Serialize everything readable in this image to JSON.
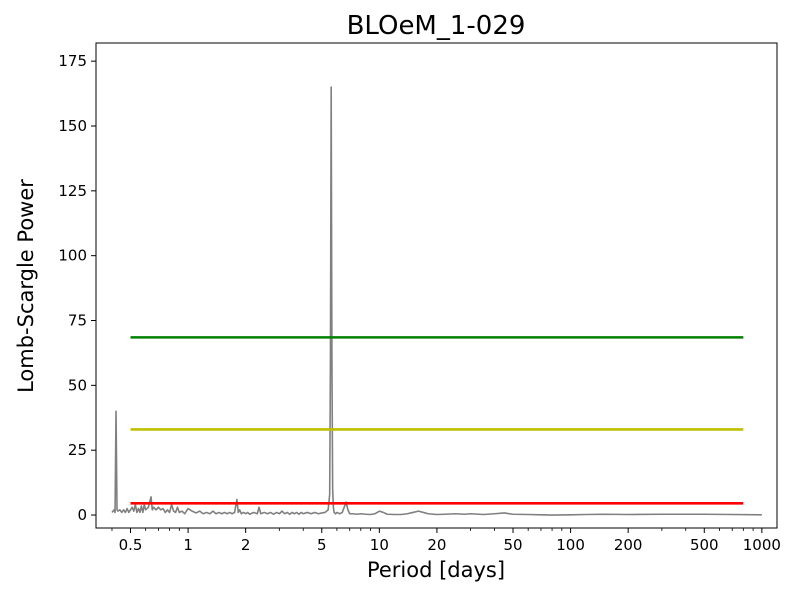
{
  "chart_data": {
    "type": "line",
    "title": "BLOeM_1-029",
    "xlabel": "Period [days]",
    "ylabel": "Lomb-Scargle Power",
    "xscale": "log",
    "xlim": [
      0.33,
      1200
    ],
    "ylim": [
      -5,
      182
    ],
    "grid": false,
    "legend": "none",
    "xticks": [
      {
        "value": 0.5,
        "label": "0.5"
      },
      {
        "value": 1,
        "label": "1"
      },
      {
        "value": 2,
        "label": "2"
      },
      {
        "value": 5,
        "label": "5"
      },
      {
        "value": 10,
        "label": "10"
      },
      {
        "value": 20,
        "label": "20"
      },
      {
        "value": 50,
        "label": "50"
      },
      {
        "value": 100,
        "label": "100"
      },
      {
        "value": 200,
        "label": "200"
      },
      {
        "value": 500,
        "label": "500"
      },
      {
        "value": 1000,
        "label": "1000"
      }
    ],
    "yticks": [
      {
        "value": 0,
        "label": "0"
      },
      {
        "value": 25,
        "label": "25"
      },
      {
        "value": 50,
        "label": "50"
      },
      {
        "value": 75,
        "label": "75"
      },
      {
        "value": 100,
        "label": "100"
      },
      {
        "value": 125,
        "label": "125"
      },
      {
        "value": 150,
        "label": "150"
      },
      {
        "value": 175,
        "label": "175"
      }
    ],
    "series": [
      {
        "color": "#808080",
        "x": [
          0.4,
          0.41,
          0.415,
          0.42,
          0.425,
          0.43,
          0.44,
          0.45,
          0.46,
          0.47,
          0.48,
          0.49,
          0.5,
          0.51,
          0.52,
          0.53,
          0.54,
          0.55,
          0.56,
          0.57,
          0.58,
          0.59,
          0.6,
          0.62,
          0.64,
          0.65,
          0.66,
          0.68,
          0.7,
          0.72,
          0.74,
          0.76,
          0.78,
          0.8,
          0.82,
          0.84,
          0.86,
          0.88,
          0.9,
          0.93,
          0.96,
          1.0,
          1.05,
          1.1,
          1.15,
          1.2,
          1.25,
          1.3,
          1.35,
          1.4,
          1.45,
          1.5,
          1.55,
          1.6,
          1.65,
          1.7,
          1.75,
          1.8,
          1.83,
          1.86,
          1.9,
          1.95,
          2.0,
          2.05,
          2.1,
          2.2,
          2.3,
          2.35,
          2.4,
          2.5,
          2.6,
          2.7,
          2.8,
          2.9,
          3.0,
          3.1,
          3.2,
          3.3,
          3.4,
          3.5,
          3.6,
          3.7,
          3.8,
          3.9,
          4.0,
          4.2,
          4.4,
          4.6,
          4.8,
          5.0,
          5.2,
          5.4,
          5.5,
          5.55,
          5.6,
          5.65,
          5.7,
          5.75,
          5.8,
          5.9,
          6.0,
          6.2,
          6.4,
          6.55,
          6.7,
          6.85,
          7.0,
          7.3,
          7.6,
          8.0,
          8.5,
          9.0,
          9.5,
          10.0,
          10.5,
          11.0,
          12.0,
          13.0,
          14.0,
          15.0,
          16.0,
          17.0,
          18.0,
          20.0,
          22.0,
          25.0,
          28.0,
          30.0,
          35.0,
          40.0,
          45.0,
          50.0,
          60.0,
          70.0,
          80.0,
          100.0,
          120.0,
          150.0,
          200.0,
          300.0,
          500.0,
          700.0,
          1000.0
        ],
        "y": [
          1.0,
          2.0,
          1.0,
          40.0,
          2.0,
          1.5,
          2.0,
          1.0,
          2.0,
          1.0,
          2.5,
          1.0,
          2.0,
          3.0,
          1.5,
          4.0,
          1.0,
          2.5,
          1.0,
          3.5,
          1.0,
          4.0,
          2.0,
          3.0,
          7.0,
          2.0,
          3.0,
          2.0,
          3.0,
          2.0,
          2.5,
          1.0,
          2.0,
          1.0,
          4.0,
          1.5,
          1.0,
          3.0,
          1.0,
          1.5,
          0.5,
          2.5,
          1.5,
          0.8,
          1.5,
          0.5,
          1.0,
          0.5,
          1.5,
          0.5,
          1.0,
          0.5,
          1.0,
          0.5,
          1.0,
          0.5,
          1.0,
          6.0,
          1.0,
          2.0,
          0.5,
          1.0,
          0.5,
          1.0,
          0.3,
          1.0,
          0.5,
          3.0,
          0.5,
          1.0,
          0.5,
          1.0,
          0.3,
          1.0,
          0.5,
          1.5,
          0.5,
          1.0,
          0.3,
          1.0,
          0.5,
          1.0,
          0.3,
          1.0,
          0.5,
          1.0,
          0.5,
          1.0,
          0.5,
          0.8,
          1.0,
          2.0,
          8.0,
          60.0,
          165.0,
          60.0,
          10.0,
          3.0,
          1.0,
          0.5,
          1.0,
          0.5,
          1.0,
          3.0,
          5.0,
          2.0,
          0.5,
          0.5,
          0.3,
          0.5,
          0.3,
          0.2,
          0.5,
          1.5,
          1.0,
          0.3,
          0.2,
          0.2,
          0.5,
          1.0,
          1.5,
          1.0,
          0.5,
          0.2,
          0.3,
          0.5,
          0.3,
          0.5,
          0.2,
          0.5,
          0.8,
          0.3,
          0.2,
          0.1,
          0.0,
          0.1,
          0.2,
          0.3,
          0.2,
          0.3,
          0.3,
          0.2,
          0.1
        ]
      }
    ],
    "thresholds": [
      {
        "color": "#008000",
        "y": 68.5,
        "xmin": 0.5,
        "xmax": 800
      },
      {
        "color": "#bfbf00",
        "y": 33.0,
        "xmin": 0.5,
        "xmax": 800
      },
      {
        "color": "#ff0000",
        "y": 4.5,
        "xmin": 0.5,
        "xmax": 800
      }
    ]
  }
}
